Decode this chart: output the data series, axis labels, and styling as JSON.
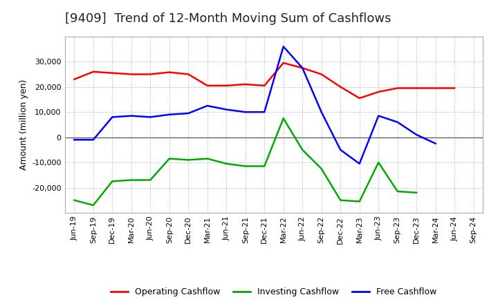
{
  "title": "[9409]  Trend of 12-Month Moving Sum of Cashflows",
  "ylabel": "Amount (million yen)",
  "background_color": "#ffffff",
  "plot_background_color": "#ffffff",
  "x_labels": [
    "Jun-19",
    "Sep-19",
    "Dec-19",
    "Mar-20",
    "Jun-20",
    "Sep-20",
    "Dec-20",
    "Mar-21",
    "Jun-21",
    "Sep-21",
    "Dec-21",
    "Mar-22",
    "Jun-22",
    "Sep-22",
    "Dec-22",
    "Mar-23",
    "Jun-23",
    "Sep-23",
    "Dec-23",
    "Mar-24",
    "Jun-24",
    "Sep-24"
  ],
  "operating": [
    23000,
    26000,
    25500,
    25000,
    25000,
    25800,
    25000,
    20500,
    20500,
    21000,
    20500,
    29500,
    27500,
    25000,
    20000,
    15500,
    18000,
    19500,
    19500,
    19500,
    19500,
    null
  ],
  "investing": [
    -25000,
    -27000,
    -17500,
    -17000,
    -17000,
    -8500,
    -9000,
    -8500,
    -10500,
    -11500,
    -11500,
    7500,
    -5000,
    -12500,
    -25000,
    -25500,
    -10000,
    -21500,
    -22000,
    null,
    null,
    null
  ],
  "free": [
    -1000,
    -1000,
    8000,
    8500,
    8000,
    9000,
    9500,
    12500,
    11000,
    10000,
    10000,
    36000,
    27500,
    10000,
    -5000,
    -10500,
    8500,
    6000,
    1000,
    -2500,
    null,
    null
  ],
  "ylim": [
    -30000,
    40000
  ],
  "yticks": [
    -20000,
    -10000,
    0,
    10000,
    20000,
    30000
  ],
  "legend": [
    {
      "label": "Operating Cashflow",
      "color": "#ff0000"
    },
    {
      "label": "Investing Cashflow",
      "color": "#00aa00"
    },
    {
      "label": "Free Cashflow",
      "color": "#0000ff"
    }
  ],
  "title_fontsize": 13,
  "axis_fontsize": 9,
  "tick_fontsize": 8,
  "legend_fontsize": 9,
  "linewidth": 1.8
}
